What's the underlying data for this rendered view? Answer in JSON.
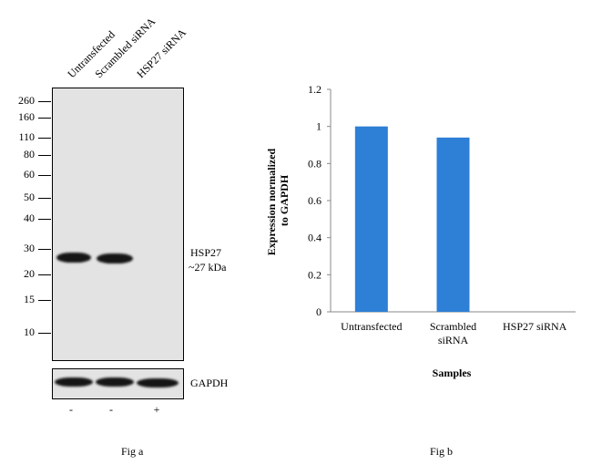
{
  "figure_a": {
    "lane_labels": [
      "Untransfected",
      "Scrambled siRNA",
      "HSP27 siRNA"
    ],
    "mw_markers": [
      "260",
      "160",
      "110",
      "80",
      "60",
      "50",
      "40",
      "30",
      "20",
      "15",
      "10"
    ],
    "protein_label": "HSP27",
    "protein_size": "~27 kDa",
    "loading_control": "GAPDH",
    "treatment_signs": [
      "-",
      "-",
      "+"
    ],
    "caption": "Fig a"
  },
  "figure_b": {
    "caption": "Fig b"
  },
  "chart_data": {
    "type": "bar",
    "categories": [
      "Untransfected",
      "Scrambled siRNA",
      "HSP27 siRNA"
    ],
    "category_lines": [
      [
        "Untransfected"
      ],
      [
        "Scrambled",
        "siRNA"
      ],
      [
        "HSP27 siRNA"
      ]
    ],
    "values": [
      1.0,
      0.94,
      0.0
    ],
    "title": "",
    "xlabel": "Samples",
    "ylabel_lines": [
      "Expression normalized",
      "to GAPDH"
    ],
    "ylim": [
      0,
      1.2
    ],
    "yticks": [
      "0",
      "0.2",
      "0.4",
      "0.6",
      "0.8",
      "1",
      "1.2"
    ],
    "bar_color": "#2e7fd6",
    "grid": false,
    "legend": "none"
  }
}
